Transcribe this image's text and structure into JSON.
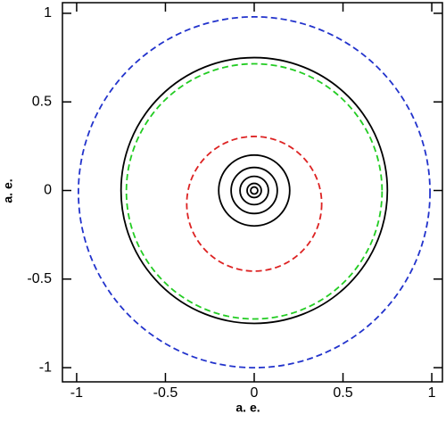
{
  "chart_data": {
    "type": "circles",
    "xlabel": "a. e.",
    "ylabel": "a. e.",
    "xlim": [
      -1.08,
      1.06
    ],
    "ylim": [
      -1.08,
      1.06
    ],
    "xticks": [
      -1,
      -0.5,
      0,
      0.5,
      1
    ],
    "yticks": [
      -1,
      -0.5,
      0,
      0.5,
      1
    ],
    "circles": [
      {
        "cx": 0,
        "cy": -0.01,
        "r": 0.99,
        "color": "#2233cc",
        "dashed": true
      },
      {
        "cx": 0,
        "cy": 0,
        "r": 0.75,
        "color": "#000000",
        "dashed": false
      },
      {
        "cx": 0,
        "cy": -0.005,
        "r": 0.72,
        "color": "#22cc22",
        "dashed": true
      },
      {
        "cx": 0,
        "cy": -0.075,
        "r": 0.38,
        "color": "#dd2222",
        "dashed": true
      },
      {
        "cx": 0,
        "cy": 0,
        "r": 0.2,
        "color": "#000000",
        "dashed": false
      },
      {
        "cx": 0,
        "cy": 0,
        "r": 0.13,
        "color": "#000000",
        "dashed": false
      },
      {
        "cx": 0,
        "cy": 0,
        "r": 0.08,
        "color": "#000000",
        "dashed": false
      },
      {
        "cx": 0,
        "cy": 0,
        "r": 0.04,
        "color": "#000000",
        "dashed": false
      },
      {
        "cx": 0,
        "cy": 0,
        "r": 0.02,
        "color": "#000000",
        "dashed": false
      }
    ]
  }
}
